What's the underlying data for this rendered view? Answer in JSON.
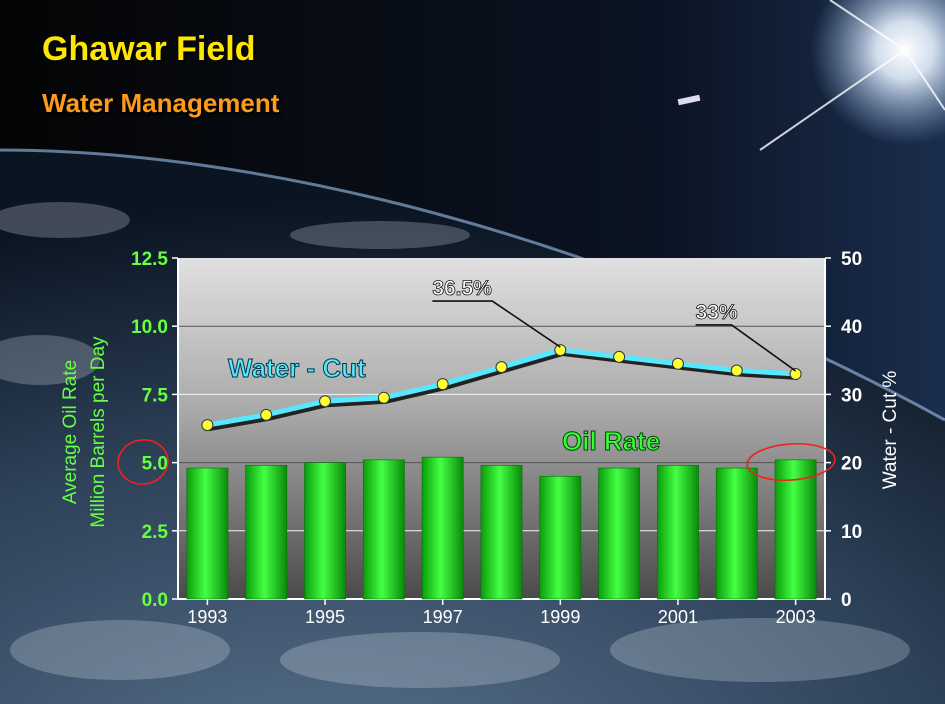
{
  "slide": {
    "title": "Ghawar Field",
    "subtitle": "Water Management"
  },
  "colors": {
    "title": "#ffe600",
    "subtitle": "#ff9a1a",
    "bar": "#1fdc1f",
    "water_cut_line": "#55e8ff",
    "marker": "#ffff33",
    "left_axis_text": "#66ff44",
    "right_axis_text": "#ffffff",
    "highlight_circle": "#ee2222"
  },
  "chart_data": {
    "type": "bar",
    "x": [
      1993,
      1994,
      1995,
      1996,
      1997,
      1998,
      1999,
      2000,
      2001,
      2002,
      2003
    ],
    "x_tick_labels": [
      "1993",
      "1995",
      "1997",
      "1999",
      "2001",
      "2003"
    ],
    "x_tick_values": [
      1993,
      1995,
      1997,
      1999,
      2001,
      2003
    ],
    "ylabel_left": "Average Oil Rate\nMillion Barrels per Day",
    "ylabel_right": "Water - Cut %",
    "ylim_left": [
      0,
      12.5
    ],
    "ylim_right": [
      0,
      50
    ],
    "left_ticks": [
      "0.0",
      "2.5",
      "5.0",
      "7.5",
      "10.0",
      "12.5"
    ],
    "right_ticks": [
      "0",
      "10",
      "20",
      "30",
      "40",
      "50"
    ],
    "grid": true,
    "series": [
      {
        "name": "Oil Rate",
        "axis": "left",
        "type": "bar",
        "values": [
          4.8,
          4.9,
          5.0,
          5.1,
          5.2,
          4.9,
          4.5,
          4.8,
          4.9,
          4.8,
          5.1
        ]
      },
      {
        "name": "Water - Cut",
        "axis": "right",
        "type": "line",
        "values": [
          25.5,
          27.0,
          29.0,
          29.5,
          31.5,
          34.0,
          36.5,
          35.5,
          34.5,
          33.5,
          33.0
        ]
      }
    ],
    "annotations": [
      {
        "text": "36.5%",
        "x": 1999,
        "series": "Water - Cut"
      },
      {
        "text": "33%",
        "x": 2003,
        "series": "Water - Cut"
      }
    ],
    "highlights": [
      {
        "target": "left-tick",
        "value": 5.0
      },
      {
        "target": "bar",
        "x": 2003
      }
    ]
  }
}
